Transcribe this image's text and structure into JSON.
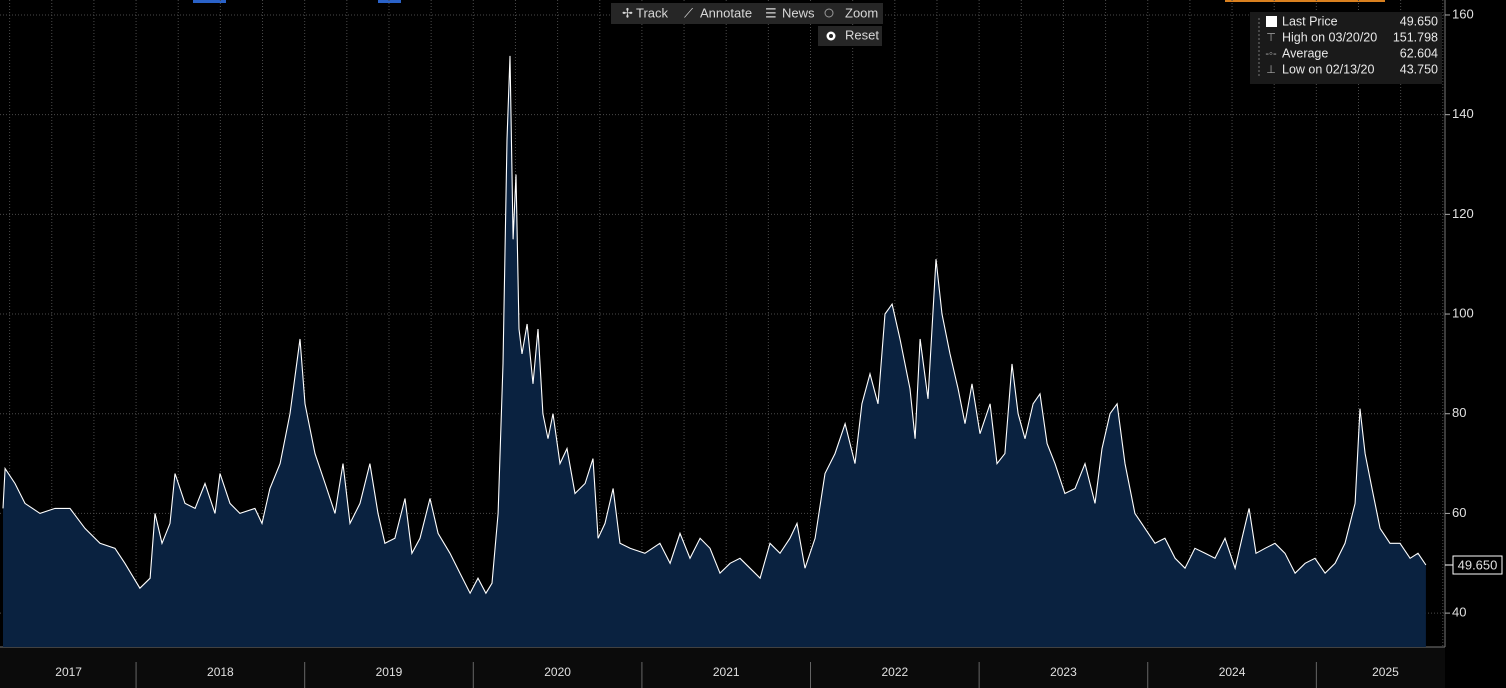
{
  "toolbar": {
    "buttons": [
      "Track",
      "Annotate",
      "News",
      "Zoom"
    ],
    "reset": "Reset"
  },
  "legend": {
    "rows": [
      {
        "name": "Last Price",
        "value": "49.650"
      },
      {
        "name": "High on 03/20/20",
        "value": "151.798"
      },
      {
        "name": "Average",
        "value": "62.604"
      },
      {
        "name": "Low on 02/13/20",
        "value": "43.750"
      }
    ]
  },
  "chart_data": {
    "type": "area",
    "xlim": [
      2017.193,
      2025.763
    ],
    "ylim": [
      33.2,
      161.4
    ],
    "yticks": [
      40,
      60,
      80,
      100,
      120,
      140,
      160
    ],
    "xticks": [
      {
        "value": 2017.6,
        "label": "2017"
      },
      {
        "value": 2018.5,
        "label": "2018"
      },
      {
        "value": 2019.5,
        "label": "2019"
      },
      {
        "value": 2020.5,
        "label": "2020"
      },
      {
        "value": 2021.5,
        "label": "2021"
      },
      {
        "value": 2022.5,
        "label": "2022"
      },
      {
        "value": 2023.5,
        "label": "2023"
      },
      {
        "value": 2024.5,
        "label": "2024"
      },
      {
        "value": 2025.41,
        "label": "2025"
      }
    ],
    "x_grid_interval": 0.25,
    "grid": true,
    "last_value_label": "49.650",
    "x": [
      2017.211,
      2017.223,
      2017.282,
      2017.341,
      2017.43,
      2017.519,
      2017.608,
      2017.697,
      2017.786,
      2017.875,
      2017.934,
      2018.023,
      2018.083,
      2018.112,
      2018.154,
      2018.201,
      2018.231,
      2018.29,
      2018.35,
      2018.409,
      2018.468,
      2018.498,
      2018.557,
      2018.616,
      2018.705,
      2018.747,
      2018.794,
      2018.854,
      2018.913,
      2018.972,
      2019.002,
      2019.061,
      2019.121,
      2019.18,
      2019.227,
      2019.269,
      2019.328,
      2019.387,
      2019.435,
      2019.476,
      2019.535,
      2019.595,
      2019.636,
      2019.684,
      2019.743,
      2019.791,
      2019.862,
      2019.921,
      2019.981,
      2020.028,
      2020.075,
      2020.111,
      2020.147,
      2020.176,
      2020.2,
      2020.218,
      2020.236,
      2020.253,
      2020.271,
      2020.289,
      2020.319,
      2020.354,
      2020.384,
      2020.413,
      2020.443,
      2020.473,
      2020.514,
      2020.556,
      2020.603,
      2020.663,
      2020.71,
      2020.74,
      2020.781,
      2020.829,
      2020.87,
      2020.93,
      2021.018,
      2021.107,
      2021.167,
      2021.226,
      2021.285,
      2021.345,
      2021.404,
      2021.463,
      2021.523,
      2021.582,
      2021.641,
      2021.701,
      2021.76,
      2021.819,
      2021.878,
      2021.92,
      2021.967,
      2022.027,
      2022.086,
      2022.145,
      2022.205,
      2022.264,
      2022.305,
      2022.353,
      2022.4,
      2022.442,
      2022.484,
      2022.531,
      2022.59,
      2022.62,
      2022.65,
      2022.697,
      2022.744,
      2022.78,
      2022.827,
      2022.875,
      2022.916,
      2022.958,
      2023.005,
      2023.065,
      2023.106,
      2023.153,
      2023.195,
      2023.231,
      2023.272,
      2023.32,
      2023.361,
      2023.403,
      2023.45,
      2023.509,
      2023.569,
      2023.628,
      2023.687,
      2023.729,
      2023.776,
      2023.818,
      2023.865,
      2023.924,
      2023.984,
      2024.043,
      2024.102,
      2024.162,
      2024.221,
      2024.28,
      2024.34,
      2024.399,
      2024.458,
      2024.518,
      2024.559,
      2024.601,
      2024.642,
      2024.696,
      2024.755,
      2024.814,
      2024.874,
      2024.933,
      2024.992,
      2025.052,
      2025.111,
      2025.17,
      2025.23,
      2025.259,
      2025.289,
      2025.33,
      2025.378,
      2025.437,
      2025.496,
      2025.556,
      2025.603,
      2025.65
    ],
    "series": [
      {
        "name": "Last Price",
        "color": "#ffffff",
        "fill": "#0a2240",
        "values": [
          61,
          69,
          66,
          62,
          60,
          61,
          61,
          57,
          54,
          53,
          50,
          45,
          47,
          60,
          54,
          58,
          68,
          62,
          61,
          66,
          60,
          68,
          62,
          60,
          61,
          58,
          65,
          70,
          80,
          95,
          82,
          72,
          66,
          60,
          70,
          58,
          62,
          70,
          60,
          54,
          55,
          63,
          52,
          55,
          63,
          56,
          52,
          48,
          44,
          47,
          44,
          46,
          60,
          90,
          135,
          151.798,
          115,
          128,
          97,
          92,
          98,
          86,
          97,
          80,
          75,
          80,
          70,
          73,
          64,
          66,
          71,
          55,
          58,
          65,
          54,
          53,
          52,
          54,
          50,
          56,
          51,
          55,
          53,
          48,
          50,
          51,
          49,
          47,
          54,
          52,
          55,
          58,
          49,
          55,
          68,
          72,
          78,
          70,
          82,
          88,
          82,
          100,
          102,
          95,
          85,
          75,
          95,
          83,
          111,
          100,
          92,
          85,
          78,
          86,
          76,
          82,
          70,
          72,
          90,
          80,
          75,
          82,
          84,
          74,
          70,
          64,
          65,
          70,
          62,
          73,
          80,
          82,
          70,
          60,
          57,
          54,
          55,
          51,
          49,
          53,
          52,
          51,
          55,
          49,
          55,
          61,
          52,
          53,
          54,
          52,
          48,
          50,
          51,
          48,
          50,
          54,
          62,
          81,
          72,
          65,
          57,
          54,
          54,
          51,
          52,
          49.65
        ]
      }
    ]
  }
}
